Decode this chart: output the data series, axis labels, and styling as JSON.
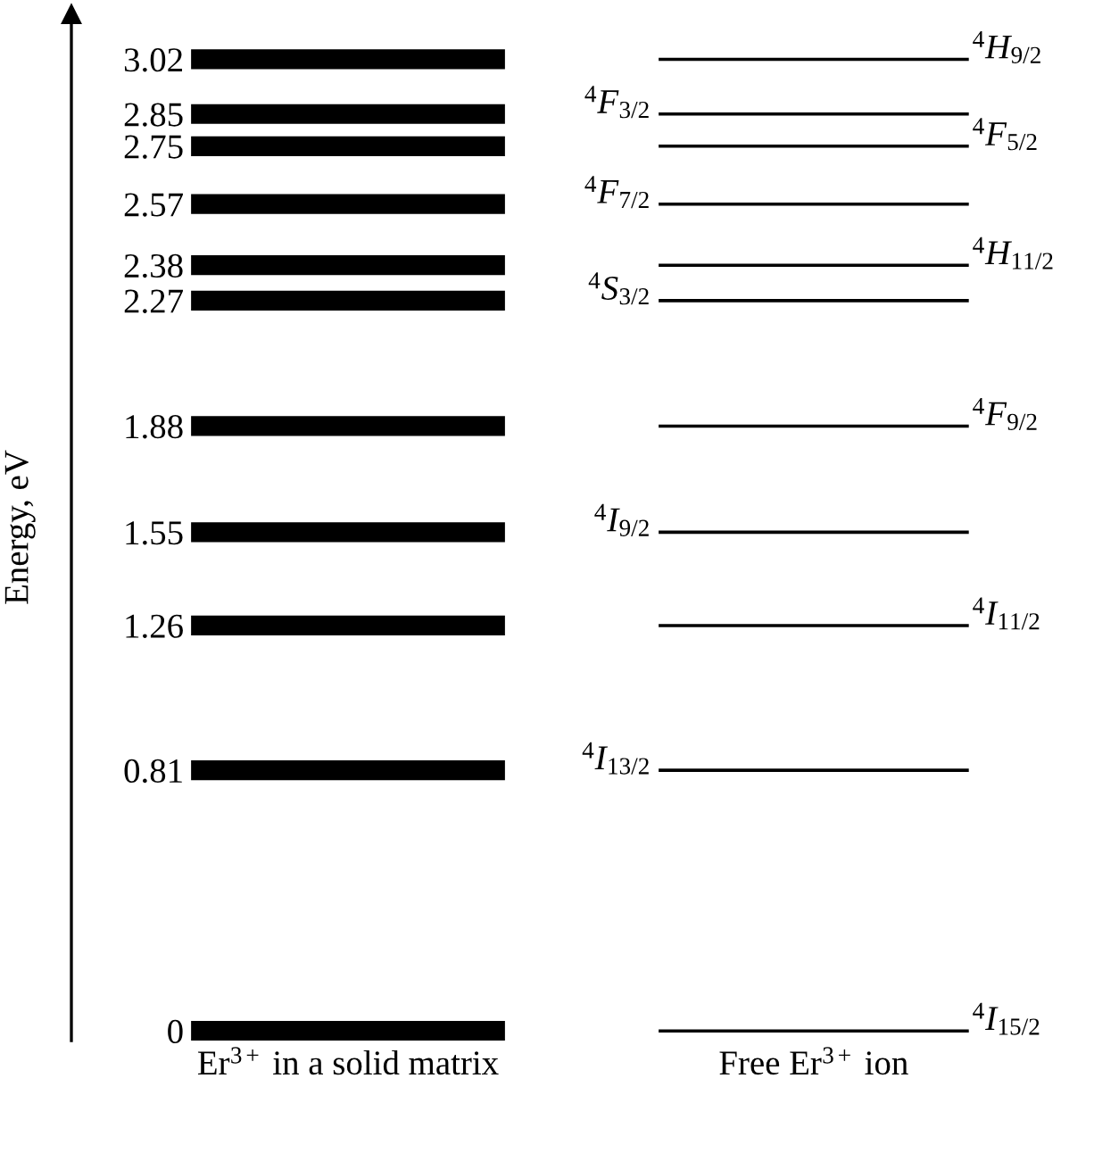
{
  "chart_data": {
    "type": "scatter",
    "ylabel": "Energy, eV",
    "categories": [
      "Er$^{3+}$ in a solid matrix",
      "Free Er$^{3+}$ ion"
    ],
    "ylim": [
      -0.03,
      3.16
    ],
    "yticks": [
      0,
      0.81,
      1.26,
      1.55,
      1.88,
      2.27,
      2.38,
      2.57,
      2.75,
      2.85,
      3.02
    ],
    "grid": false,
    "legend": false,
    "ref_lines": [
      {
        "axis": "y",
        "value": 0,
        "color": "#000000"
      },
      {
        "axis": "y",
        "value": 0.81,
        "color": "#000000"
      },
      {
        "axis": "y",
        "value": 1.26,
        "color": "#000000"
      },
      {
        "axis": "y",
        "value": 1.55,
        "color": "#000000"
      },
      {
        "axis": "y",
        "value": 1.88,
        "color": "#000000"
      },
      {
        "axis": "y",
        "value": 2.27,
        "color": "#000000"
      },
      {
        "axis": "y",
        "value": 2.38,
        "color": "#000000"
      },
      {
        "axis": "y",
        "value": 2.57,
        "color": "#000000"
      },
      {
        "axis": "y",
        "value": 2.75,
        "color": "#000000"
      },
      {
        "axis": "y",
        "value": 2.85,
        "color": "#000000"
      },
      {
        "axis": "y",
        "value": 3.02,
        "color": "#000000"
      },
      {
        "axis": "y",
        "value": 0,
        "label": "$^{4}$I$_{15/2}$",
        "color": "#000000"
      },
      {
        "axis": "y",
        "value": 0.81,
        "label": "$^{4}$I$_{13/2}$",
        "color": "#000000"
      },
      {
        "axis": "y",
        "value": 1.26,
        "label": "$^{4}$I$_{11/2}$",
        "color": "#000000"
      },
      {
        "axis": "y",
        "value": 1.55,
        "label": "$^{4}$I$_{9/2}$",
        "color": "#000000"
      },
      {
        "axis": "y",
        "value": 1.88,
        "label": "$^{4}$F$_{9/2}$",
        "color": "#000000"
      },
      {
        "axis": "y",
        "value": 2.27,
        "label": "$^{4}$S$_{3/2}$",
        "color": "#000000"
      },
      {
        "axis": "y",
        "value": 2.38,
        "label": "$^{4}$H$_{11/2}$",
        "color": "#000000"
      },
      {
        "axis": "y",
        "value": 2.57,
        "label": "$^{4}$F$_{7/2}$",
        "color": "#000000"
      },
      {
        "axis": "y",
        "value": 2.75,
        "label": "$^{4}$F$_{5/2}$",
        "color": "#000000"
      },
      {
        "axis": "y",
        "value": 2.85,
        "label": "$^{4}$F$_{3/2}$",
        "color": "#000000"
      },
      {
        "axis": "y",
        "value": 3.02,
        "label": "$^{4}$H$_{9/2}$",
        "color": "#000000"
      }
    ]
  }
}
